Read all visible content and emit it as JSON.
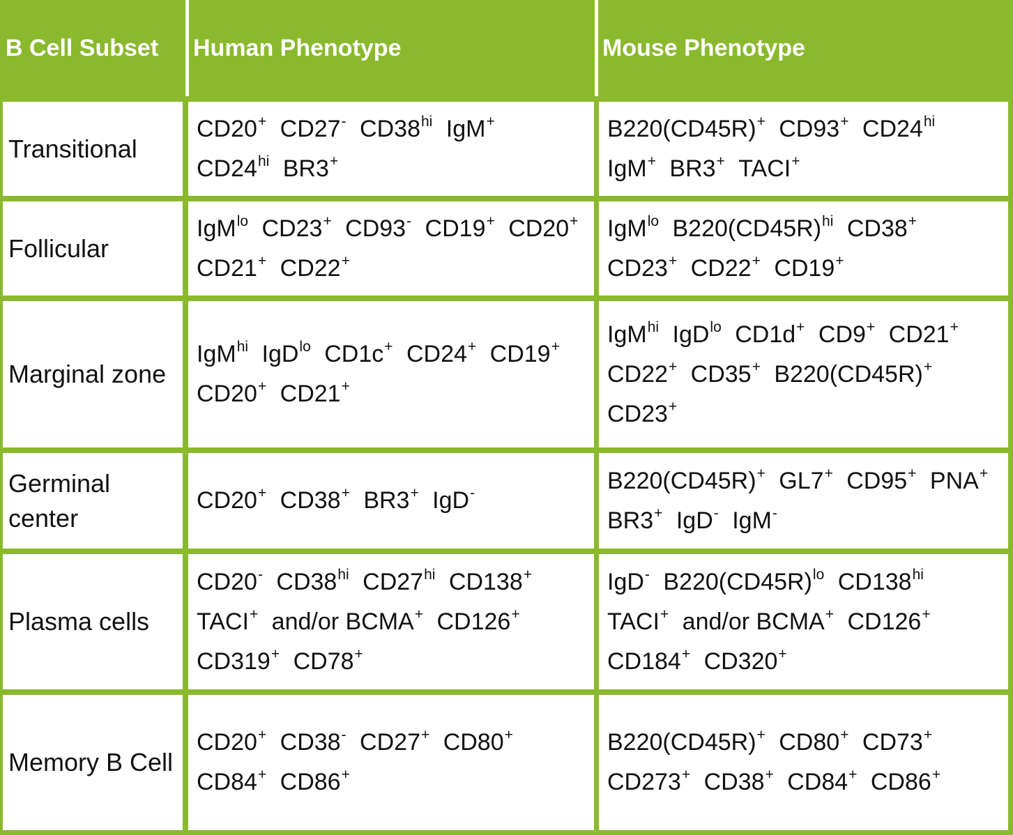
{
  "colors": {
    "header_bg": "#8ab92d",
    "border": "#8ab92d",
    "header_text": "#ffffff",
    "body_text": "#111111"
  },
  "headers": [
    "B Cell Subset",
    "Human Phenotype",
    "Mouse Phenotype"
  ],
  "rows": [
    {
      "subset": "Transitional",
      "human": [
        [
          "CD20",
          "+"
        ],
        [
          "CD27",
          "-"
        ],
        [
          "CD38",
          "hi"
        ],
        [
          "IgM",
          "+"
        ],
        [
          "CD24",
          "hi"
        ],
        [
          "BR3",
          "+"
        ]
      ],
      "mouse": [
        [
          "B220(CD45R)",
          "+"
        ],
        [
          "CD93",
          "+"
        ],
        [
          "CD24",
          "hi"
        ],
        [
          "IgM",
          "+"
        ],
        [
          "BR3",
          "+"
        ],
        [
          "TACI",
          "+"
        ]
      ]
    },
    {
      "subset": "Follicular",
      "human": [
        [
          "IgM",
          "lo"
        ],
        [
          "CD23",
          "+"
        ],
        [
          "CD93",
          "-"
        ],
        [
          "CD19",
          "+"
        ],
        [
          "CD20",
          "+"
        ],
        [
          "CD21",
          "+"
        ],
        [
          "CD22",
          "+"
        ]
      ],
      "mouse": [
        [
          "IgM",
          "lo"
        ],
        [
          "B220(CD45R)",
          "hi"
        ],
        [
          "CD38",
          "+"
        ],
        [
          "CD23",
          "+"
        ],
        [
          "CD22",
          "+"
        ],
        [
          "CD19",
          "+"
        ]
      ]
    },
    {
      "subset": "Marginal zone",
      "human": [
        [
          "IgM",
          "hi"
        ],
        [
          "IgD",
          "lo"
        ],
        [
          "CD1c",
          "+"
        ],
        [
          "CD24",
          "+"
        ],
        [
          "CD19",
          "+"
        ],
        [
          "CD20",
          "+"
        ],
        [
          "CD21",
          "+"
        ]
      ],
      "mouse": [
        [
          "IgM",
          "hi"
        ],
        [
          "IgD",
          "lo"
        ],
        [
          "CD1d",
          "+"
        ],
        [
          "CD9",
          "+"
        ],
        [
          "CD21",
          "+"
        ],
        [
          "CD22",
          "+"
        ],
        [
          "CD35",
          "+"
        ],
        [
          "B220(CD45R)",
          "+"
        ],
        [
          "CD23",
          "+"
        ]
      ]
    },
    {
      "subset": "Germinal center",
      "human": [
        [
          "CD20",
          "+"
        ],
        [
          "CD38",
          "+"
        ],
        [
          "BR3",
          "+"
        ],
        [
          "IgD",
          "-"
        ]
      ],
      "mouse": [
        [
          "B220(CD45R)",
          "+"
        ],
        [
          "GL7",
          "+"
        ],
        [
          "CD95",
          "+"
        ],
        [
          "PNA",
          "+"
        ],
        [
          "BR3",
          "+"
        ],
        [
          "IgD",
          "-"
        ],
        [
          "IgM",
          "-"
        ]
      ]
    },
    {
      "subset": "Plasma cells",
      "human": [
        [
          "CD20",
          "-"
        ],
        [
          "CD38",
          "hi"
        ],
        [
          "CD27",
          "hi"
        ],
        [
          "CD138",
          "+"
        ],
        [
          "TACI",
          "+"
        ],
        [
          "and/or BCMA",
          "+"
        ],
        [
          "CD126",
          "+"
        ],
        [
          "CD319",
          "+"
        ],
        [
          "CD78",
          "+"
        ]
      ],
      "mouse": [
        [
          "IgD",
          "-"
        ],
        [
          "B220(CD45R)",
          "lo"
        ],
        [
          "CD138",
          "hi"
        ],
        [
          "TACI",
          "+"
        ],
        [
          "and/or BCMA",
          "+"
        ],
        [
          "CD126",
          "+"
        ],
        [
          "CD184",
          "+"
        ],
        [
          "CD320",
          "+"
        ]
      ]
    },
    {
      "subset": "Memory B Cell",
      "human": [
        [
          "CD20",
          "+"
        ],
        [
          "CD38",
          "-"
        ],
        [
          "CD27",
          "+"
        ],
        [
          "CD80",
          "+"
        ],
        [
          "CD84",
          "+"
        ],
        [
          "CD86",
          "+"
        ]
      ],
      "mouse": [
        [
          "B220(CD45R)",
          "+"
        ],
        [
          "CD80",
          "+"
        ],
        [
          "CD73",
          "+"
        ],
        [
          "CD273",
          "+"
        ],
        [
          "CD38",
          "+"
        ],
        [
          "CD84",
          "+"
        ],
        [
          "CD86",
          "+"
        ]
      ]
    }
  ]
}
